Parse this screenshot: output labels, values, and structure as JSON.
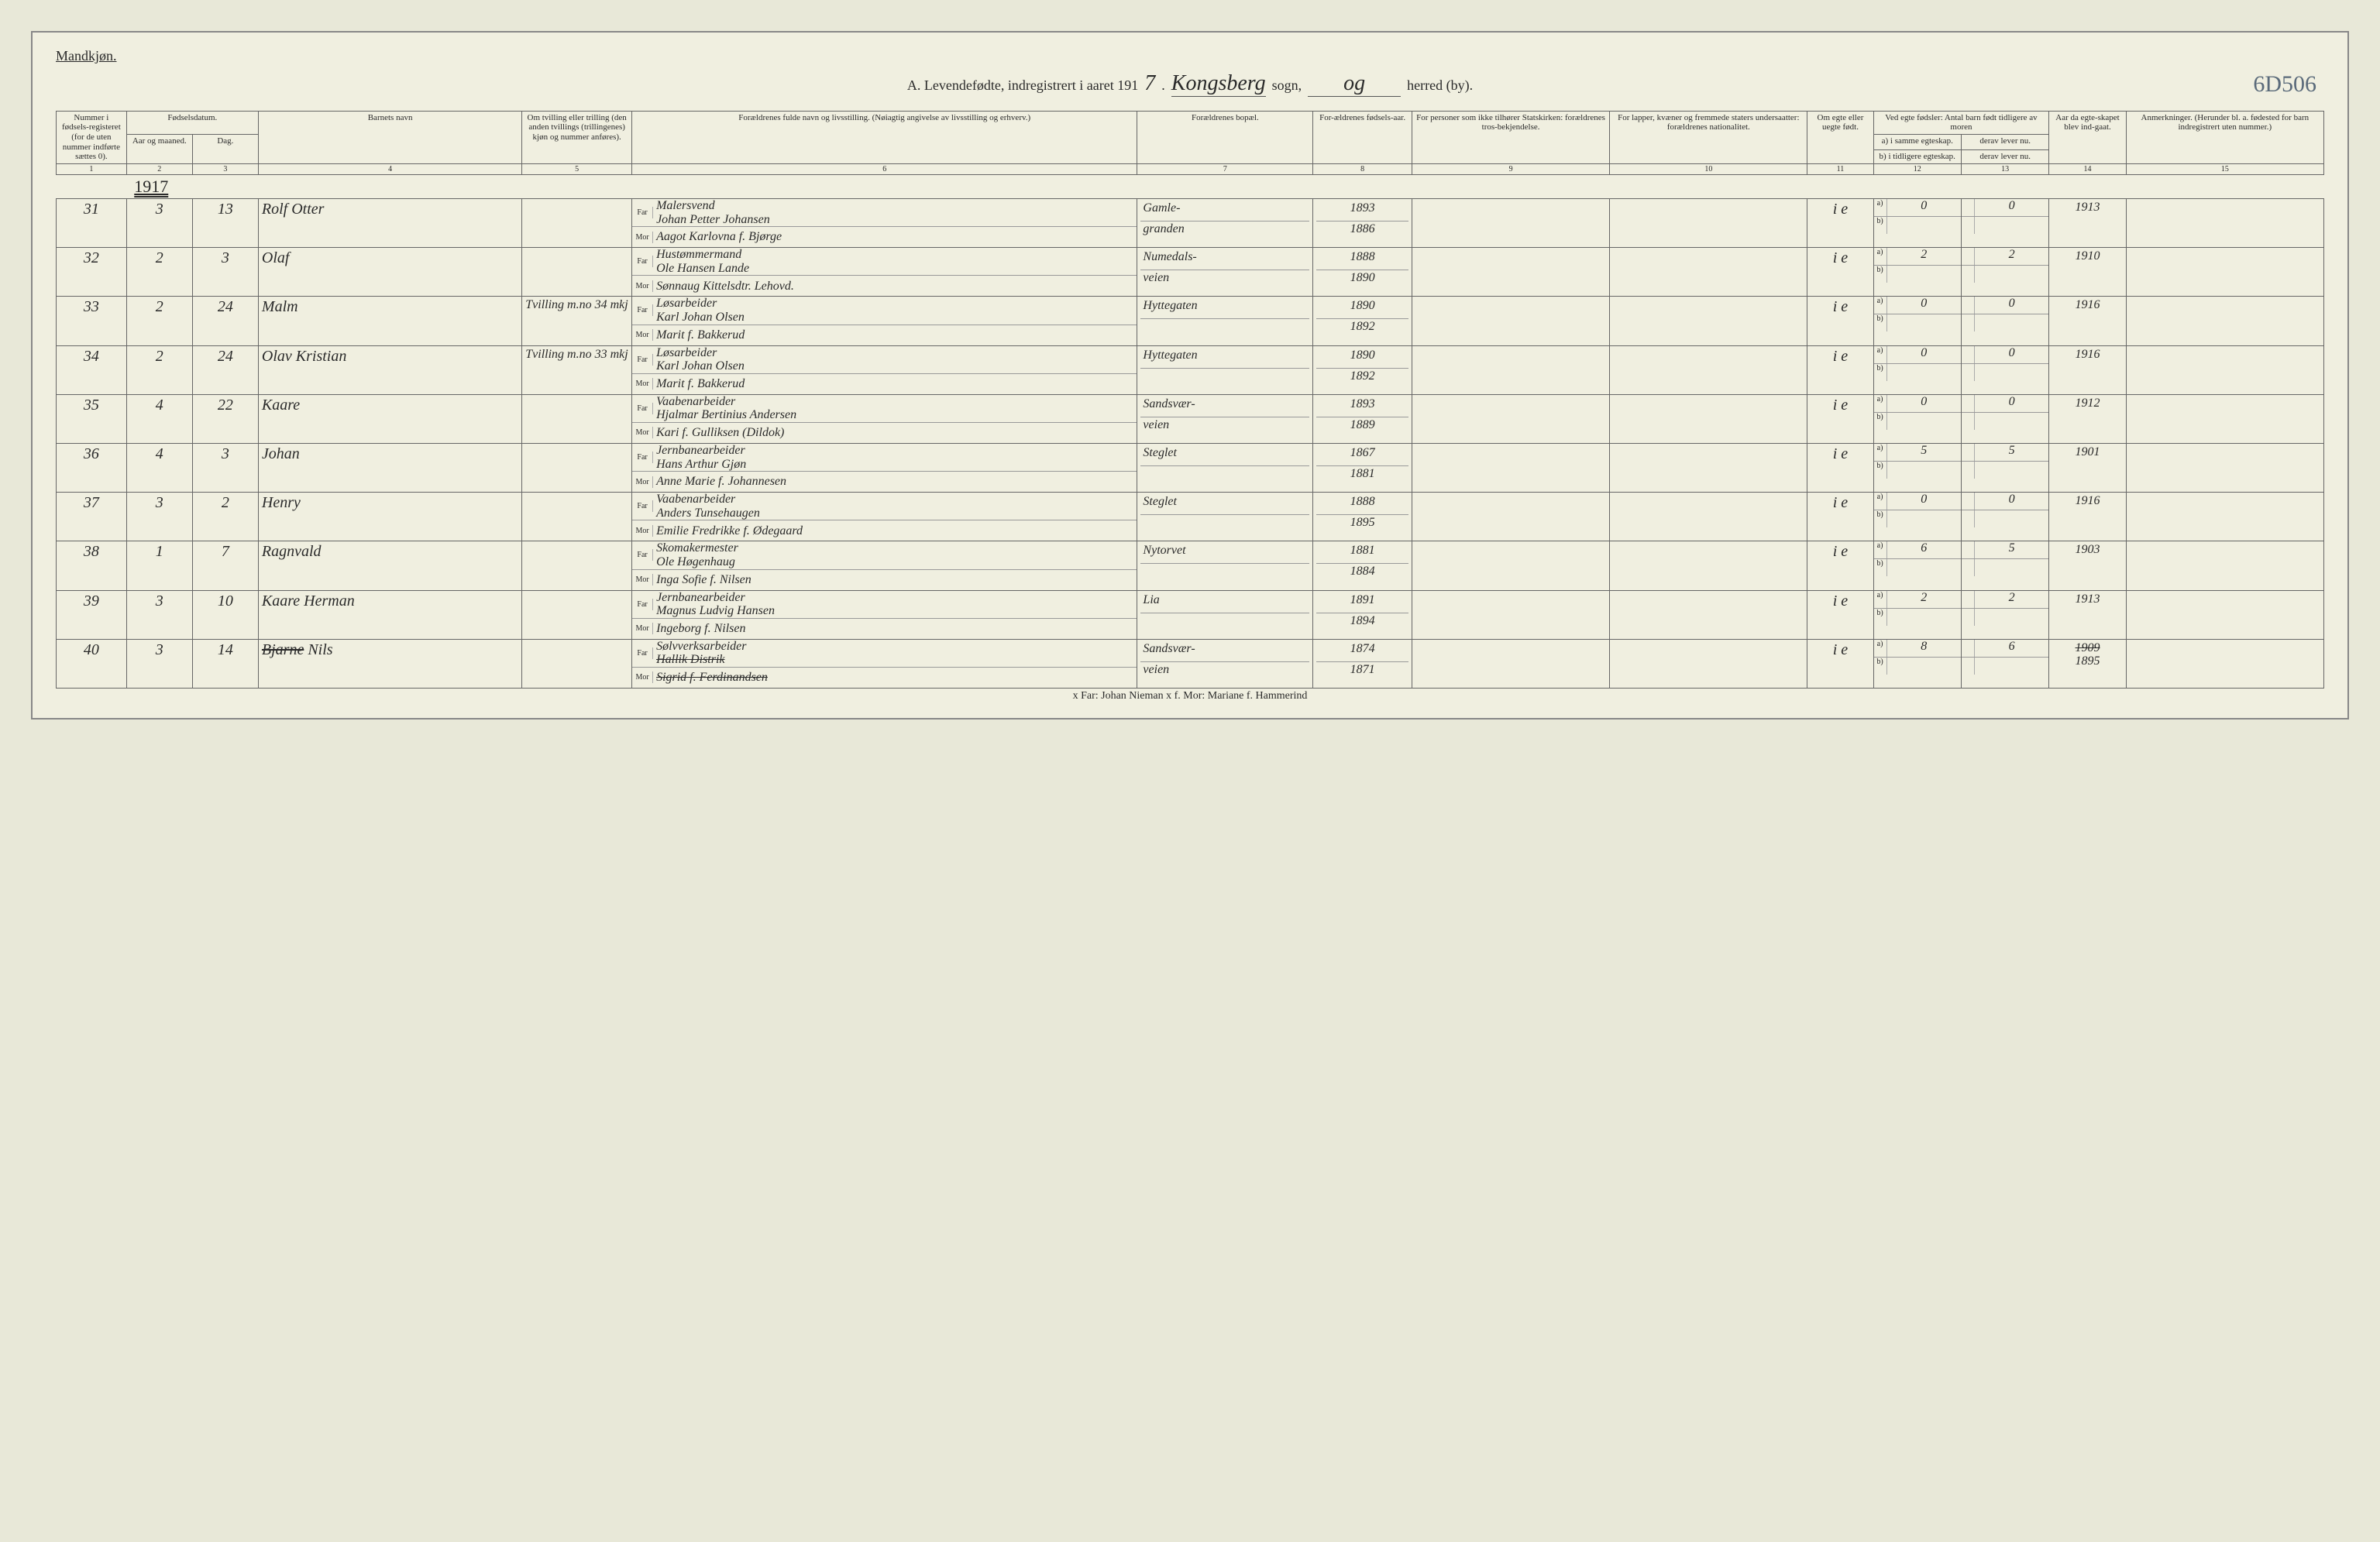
{
  "header": {
    "gender_label": "Mandkjøn.",
    "title_prefix": "A. Levendefødte, indregistrert i aaret 191",
    "year_digit": "7",
    "sogn_hand": "Kongsberg",
    "sogn_label": "sogn,",
    "og_hand": "og",
    "herred_label": "herred (by).",
    "corner_note": "6D506"
  },
  "columns": {
    "c1": "Nummer i fødsels-registeret (for de uten nummer indførte sættes 0).",
    "c2_group": "Fødselsdatum.",
    "c2": "Aar og maaned.",
    "c3": "Dag.",
    "c4": "Barnets navn",
    "c5": "Om tvilling eller trilling (den anden tvillings (trillingenes) kjøn og nummer anføres).",
    "c6": "Forældrenes fulde navn og livsstilling. (Nøiagtig angivelse av livsstilling og erhverv.)",
    "c7": "Forældrenes bopæl.",
    "c8": "For-ældrenes fødsels-aar.",
    "c9": "For personer som ikke tilhører Statskirken: forældrenes tros-bekjendelse.",
    "c10": "For lapper, kvæner og fremmede staters undersaatter: forældrenes nationalitet.",
    "c11": "Om egte eller uegte født.",
    "c12_group": "Ved egte fødsler: Antal barn født tidligere av moren",
    "c12a": "a) i samme egteskap.",
    "c12b": "b) i tidligere egteskap.",
    "c13a": "derav lever nu.",
    "c13b": "derav lever nu.",
    "c14": "Aar da egte-skapet blev ind-gaat.",
    "c15": "Anmerkninger. (Herunder bl. a. fødested for barn indregistrert uten nummer.)"
  },
  "colnums": [
    "1",
    "2",
    "3",
    "4",
    "5",
    "6",
    "7",
    "8",
    "9",
    "10",
    "11",
    "12",
    "13",
    "14",
    "15"
  ],
  "year_marker": "1917",
  "far_label": "Far",
  "mor_label": "Mor",
  "rows": [
    {
      "num": "31",
      "month": "3",
      "day": "13",
      "name": "Rolf Otter",
      "twin": "",
      "occ": "Malersvend",
      "far": "Johan Petter Johansen",
      "mor": "Aagot Karlovna f. Bjørge",
      "res1": "Gamle-",
      "res2": "granden",
      "fy": "1893",
      "my": "1886",
      "egte": "i e",
      "a": "0",
      "b": "",
      "d1": "0",
      "d2": "",
      "marr": "1913",
      "rem": ""
    },
    {
      "num": "32",
      "month": "2",
      "day": "3",
      "name": "Olaf",
      "twin": "",
      "occ": "Hustømmermand",
      "far": "Ole Hansen Lande",
      "mor": "Sønnaug Kittelsdtr. Lehovd.",
      "res1": "Numedals-",
      "res2": "veien",
      "fy": "1888",
      "my": "1890",
      "egte": "i e",
      "a": "2",
      "b": "",
      "d1": "2",
      "d2": "",
      "marr": "1910",
      "rem": ""
    },
    {
      "num": "33",
      "month": "2",
      "day": "24",
      "name": "Malm",
      "twin": "Tvilling m.no 34 mkj",
      "occ": "Løsarbeider",
      "far": "Karl Johan Olsen",
      "mor": "Marit f. Bakkerud",
      "res1": "Hyttegaten",
      "res2": "",
      "fy": "1890",
      "my": "1892",
      "egte": "i e",
      "a": "0",
      "b": "",
      "d1": "0",
      "d2": "",
      "marr": "1916",
      "rem": ""
    },
    {
      "num": "34",
      "month": "2",
      "day": "24",
      "name": "Olav Kristian",
      "twin": "Tvilling m.no 33 mkj",
      "occ": "Løsarbeider",
      "far": "Karl Johan Olsen",
      "mor": "Marit f. Bakkerud",
      "res1": "Hyttegaten",
      "res2": "",
      "fy": "1890",
      "my": "1892",
      "egte": "i e",
      "a": "0",
      "b": "",
      "d1": "0",
      "d2": "",
      "marr": "1916",
      "rem": ""
    },
    {
      "num": "35",
      "month": "4",
      "day": "22",
      "name": "Kaare",
      "twin": "",
      "occ": "Vaabenarbeider",
      "far": "Hjalmar Bertinius Andersen",
      "mor": "Kari f. Gulliksen (Dildok)",
      "res1": "Sandsvær-",
      "res2": "veien",
      "fy": "1893",
      "my": "1889",
      "egte": "i e",
      "a": "0",
      "b": "",
      "d1": "0",
      "d2": "",
      "marr": "1912",
      "rem": ""
    },
    {
      "num": "36",
      "month": "4",
      "day": "3",
      "name": "Johan",
      "twin": "",
      "occ": "Jernbanearbeider",
      "far": "Hans Arthur Gjøn",
      "mor": "Anne Marie f. Johannesen",
      "res1": "Steglet",
      "res2": "",
      "fy": "1867",
      "my": "1881",
      "egte": "i e",
      "a": "5",
      "b": "",
      "d1": "5",
      "d2": "",
      "marr": "1901",
      "rem": ""
    },
    {
      "num": "37",
      "month": "3",
      "day": "2",
      "name": "Henry",
      "twin": "",
      "occ": "Vaabenarbeider",
      "far": "Anders Tunsehaugen",
      "mor": "Emilie Fredrikke f. Ødegaard",
      "res1": "Steglet",
      "res2": "",
      "fy": "1888",
      "my": "1895",
      "egte": "i e",
      "a": "0",
      "b": "",
      "d1": "0",
      "d2": "",
      "marr": "1916",
      "rem": ""
    },
    {
      "num": "38",
      "month": "1",
      "day": "7",
      "name": "Ragnvald",
      "twin": "",
      "occ": "Skomakermester",
      "far": "Ole Høgenhaug",
      "mor": "Inga Sofie f. Nilsen",
      "res1": "Nytorvet",
      "res2": "",
      "fy": "1881",
      "my": "1884",
      "egte": "i e",
      "a": "6",
      "b": "",
      "d1": "5",
      "d2": "",
      "marr": "1903",
      "rem": ""
    },
    {
      "num": "39",
      "month": "3",
      "day": "10",
      "name": "Kaare Herman",
      "twin": "",
      "occ": "Jernbanearbeider",
      "far": "Magnus Ludvig Hansen",
      "mor": "Ingeborg f. Nilsen",
      "res1": "Lia",
      "res2": "",
      "fy": "1891",
      "my": "1894",
      "egte": "i e",
      "a": "2",
      "b": "",
      "d1": "2",
      "d2": "",
      "marr": "1913",
      "rem": ""
    },
    {
      "num": "40",
      "month": "3",
      "day": "14",
      "name": "Nils",
      "name_strike": "Bjarne",
      "twin": "",
      "occ": "Sølvverksarbeider",
      "far": "Hallik Distrik",
      "far_strike": true,
      "mor": "Sigrid f. Ferdinandsen",
      "mor_strike": true,
      "res1": "Sandsvær-",
      "res2": "veien",
      "fy": "1874",
      "my": "1871",
      "egte": "i e",
      "a": "8",
      "b": "",
      "d1": "6",
      "d2": "",
      "marr": "1895",
      "marr_strike": "1909",
      "rem": ""
    }
  ],
  "footer_note": "x Far: Johan Nieman  x f. Mor: Mariane f. Hammerind",
  "widths": {
    "c1": "3.2%",
    "c2": "3%",
    "c3": "3%",
    "c4": "12%",
    "c5": "5%",
    "c6": "23%",
    "c7": "8%",
    "c8": "4.5%",
    "c9": "9%",
    "c10": "9%",
    "c11": "3%",
    "c12": "4%",
    "c13": "4%",
    "c14": "3.5%",
    "c15": "9%"
  }
}
